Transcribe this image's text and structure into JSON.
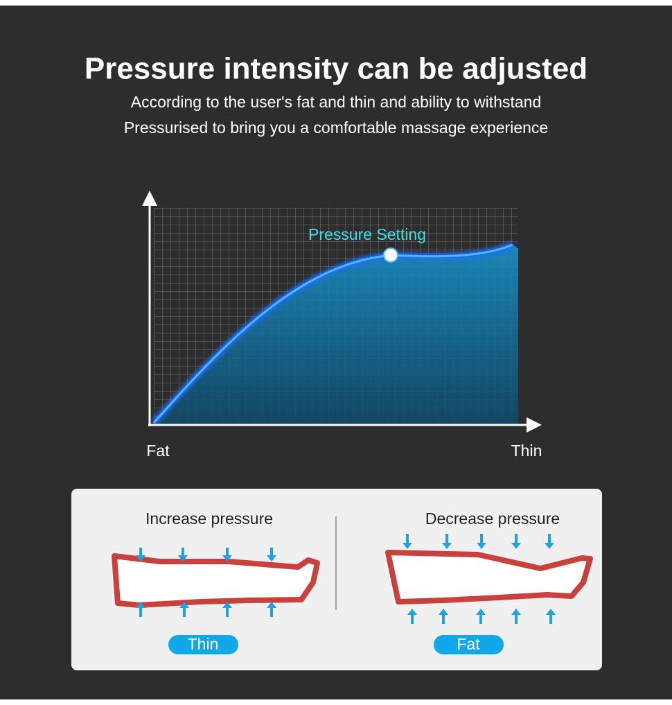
{
  "header": {
    "title": "Pressure intensity can be adjusted",
    "subtitle_lines": [
      "According to the user's fat and thin and ability to withstand",
      "Pressurised to bring you a comfortable massage experience"
    ]
  },
  "graph": {
    "label": "Pressure Setting",
    "x_start_label": "Fat",
    "x_end_label": "Thin"
  },
  "panels": [
    {
      "title": "Increase pressure",
      "tag": "Thin"
    },
    {
      "title": "Decrease pressure",
      "tag": "Fat"
    }
  ]
}
